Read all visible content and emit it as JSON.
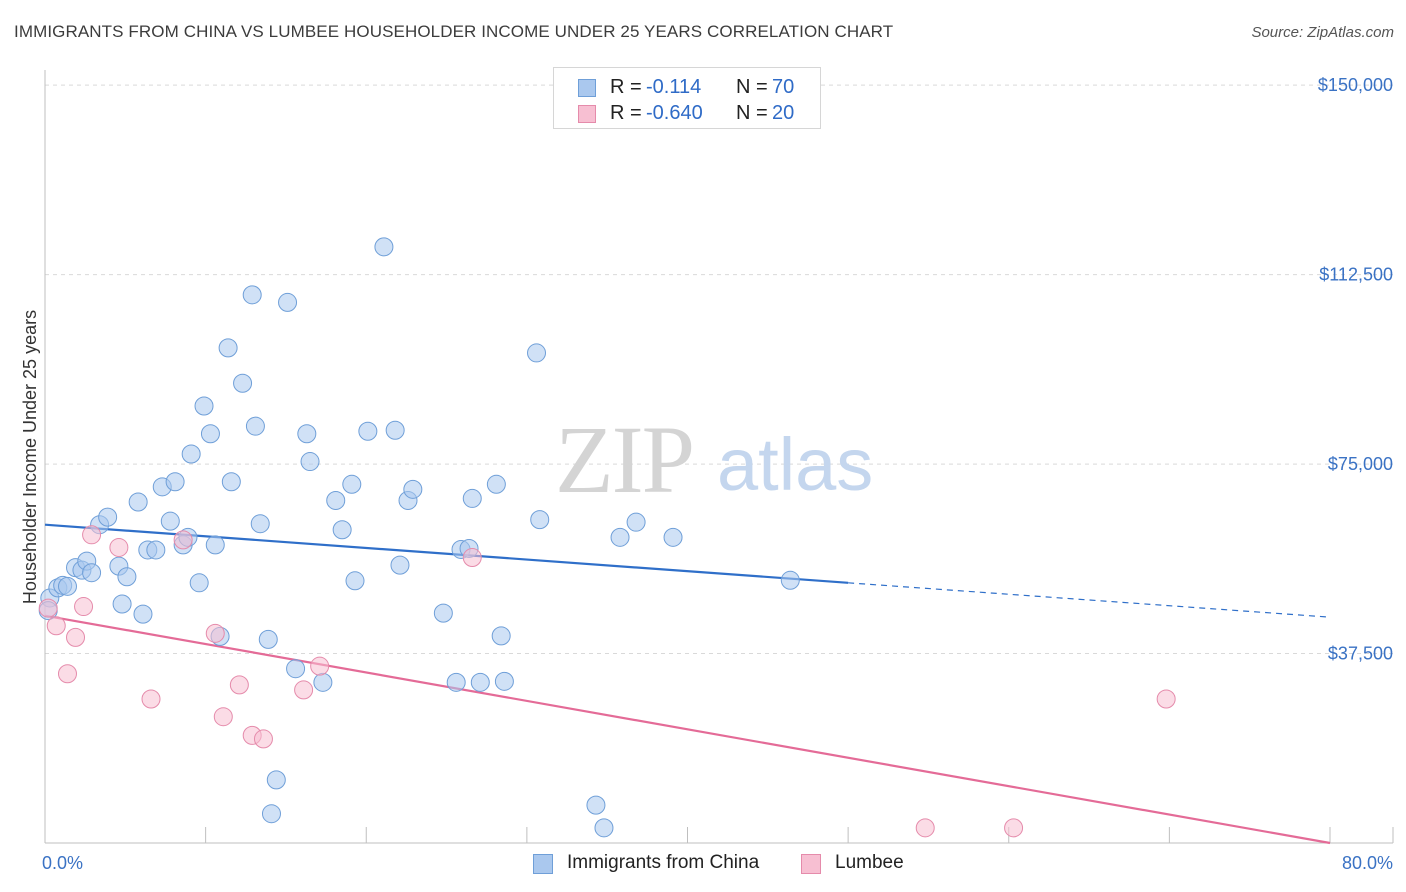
{
  "title": "IMMIGRANTS FROM CHINA VS LUMBEE HOUSEHOLDER INCOME UNDER 25 YEARS CORRELATION CHART",
  "source": "Source: ZipAtlas.com",
  "watermark": {
    "zip": "ZIP",
    "atlas": "atlas"
  },
  "colors": {
    "china_fill": "#aac8ee",
    "china_stroke": "#6f9fd8",
    "china_line": "#2f6fc9",
    "lumbee_fill": "#f7bfd2",
    "lumbee_stroke": "#e58bab",
    "lumbee_line": "#e46b97"
  },
  "legend": {
    "rows": [
      {
        "r_label": "R =",
        "r_value": "-0.114",
        "n_label": "N =",
        "n_value": "70"
      },
      {
        "r_label": "R =",
        "r_value": "-0.640",
        "n_label": "N =",
        "n_value": "20"
      }
    ]
  },
  "bottom_legend": {
    "china": "Immigrants from China",
    "lumbee": "Lumbee"
  },
  "chart_data": {
    "type": "scatter",
    "title": "IMMIGRANTS FROM CHINA VS LUMBEE HOUSEHOLDER INCOME UNDER 25 YEARS CORRELATION CHART",
    "xlabel": "",
    "ylabel": "Householder Income Under 25 years",
    "xlim": [
      0,
      80
    ],
    "ylim": [
      0,
      153000
    ],
    "x_tick_labels": [
      "0.0%",
      "80.0%"
    ],
    "y_ticks": [
      37500,
      75000,
      112500,
      150000
    ],
    "y_tick_labels": [
      "$37,500",
      "$75,000",
      "$112,500",
      "$150,000"
    ],
    "grid": true,
    "series": [
      {
        "name": "Immigrants from China",
        "r": -0.114,
        "n": 70,
        "trend": {
          "x0": 0,
          "y0": 63000,
          "x1": 50,
          "y1": 51500,
          "dash_to_x": 80,
          "dash_to_y": 44700
        },
        "points": [
          [
            0.3,
            48500
          ],
          [
            0.8,
            50500
          ],
          [
            1.1,
            51000
          ],
          [
            1.4,
            50800
          ],
          [
            1.9,
            54500
          ],
          [
            2.3,
            54000
          ],
          [
            2.6,
            55800
          ],
          [
            2.9,
            53500
          ],
          [
            3.4,
            63000
          ],
          [
            3.9,
            64500
          ],
          [
            4.6,
            54800
          ],
          [
            4.8,
            47300
          ],
          [
            5.1,
            52700
          ],
          [
            5.8,
            67500
          ],
          [
            6.1,
            45300
          ],
          [
            6.4,
            58000
          ],
          [
            6.9,
            58000
          ],
          [
            7.3,
            70500
          ],
          [
            7.8,
            63700
          ],
          [
            8.1,
            71500
          ],
          [
            8.6,
            59000
          ],
          [
            8.9,
            60500
          ],
          [
            9.1,
            77000
          ],
          [
            9.6,
            51500
          ],
          [
            9.9,
            86500
          ],
          [
            10.3,
            81000
          ],
          [
            10.6,
            59000
          ],
          [
            10.9,
            40900
          ],
          [
            11.4,
            98000
          ],
          [
            11.6,
            71500
          ],
          [
            12.3,
            91000
          ],
          [
            12.9,
            108500
          ],
          [
            13.1,
            82500
          ],
          [
            13.4,
            63200
          ],
          [
            13.9,
            40300
          ],
          [
            14.4,
            12500
          ],
          [
            14.1,
            5800
          ],
          [
            15.1,
            107000
          ],
          [
            15.6,
            34500
          ],
          [
            16.3,
            81000
          ],
          [
            16.5,
            75500
          ],
          [
            17.3,
            31800
          ],
          [
            18.1,
            67800
          ],
          [
            18.5,
            62000
          ],
          [
            19.1,
            71000
          ],
          [
            19.3,
            51900
          ],
          [
            20.1,
            81500
          ],
          [
            21.1,
            118000
          ],
          [
            21.8,
            81700
          ],
          [
            22.1,
            55000
          ],
          [
            22.6,
            67800
          ],
          [
            22.9,
            70000
          ],
          [
            24.8,
            45500
          ],
          [
            25.6,
            31800
          ],
          [
            25.9,
            58100
          ],
          [
            26.4,
            58300
          ],
          [
            26.6,
            68200
          ],
          [
            27.1,
            31800
          ],
          [
            28.1,
            71000
          ],
          [
            28.4,
            41000
          ],
          [
            28.6,
            32000
          ],
          [
            30.6,
            97000
          ],
          [
            30.8,
            64000
          ],
          [
            34.3,
            7500
          ],
          [
            34.8,
            3000
          ],
          [
            35.8,
            60500
          ],
          [
            36.8,
            63500
          ],
          [
            39.1,
            60500
          ],
          [
            46.4,
            52000
          ],
          [
            0.2,
            46000
          ]
        ]
      },
      {
        "name": "Lumbee",
        "r": -0.64,
        "n": 20,
        "trend": {
          "x0": 0,
          "y0": 45000,
          "x1": 80,
          "y1": 0
        },
        "points": [
          [
            0.2,
            46500
          ],
          [
            0.7,
            43000
          ],
          [
            1.4,
            33500
          ],
          [
            1.9,
            40700
          ],
          [
            2.4,
            46800
          ],
          [
            2.9,
            61000
          ],
          [
            4.6,
            58500
          ],
          [
            6.6,
            28500
          ],
          [
            8.6,
            60000
          ],
          [
            10.6,
            41500
          ],
          [
            11.1,
            25000
          ],
          [
            12.1,
            31300
          ],
          [
            12.9,
            21300
          ],
          [
            13.6,
            20600
          ],
          [
            16.1,
            30300
          ],
          [
            17.1,
            35000
          ],
          [
            26.6,
            56500
          ],
          [
            54.8,
            3000
          ],
          [
            60.3,
            3000
          ],
          [
            69.8,
            28500
          ]
        ]
      }
    ]
  }
}
